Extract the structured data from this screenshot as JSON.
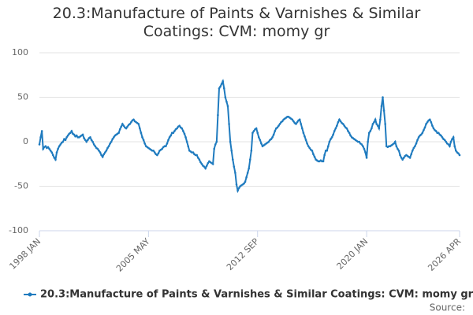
{
  "chart_data": {
    "type": "line",
    "title": "20.3:Manufacture of Paints & Varnishes & Similar Coatings: CVM: momy gr",
    "source": "Source:",
    "categories": [
      "1998 JAN",
      null,
      null,
      null,
      null,
      null,
      null,
      null,
      null,
      null,
      null,
      null,
      null,
      null,
      null,
      null,
      null,
      null,
      null,
      null,
      null,
      null,
      null,
      null,
      null,
      null,
      null,
      null,
      null,
      null,
      null,
      null,
      null,
      null,
      null,
      null,
      null,
      null,
      null,
      null,
      null,
      null,
      null,
      null,
      null,
      null,
      null,
      null,
      null,
      null,
      null,
      null,
      null,
      null,
      null,
      null,
      null,
      null,
      null,
      null,
      null,
      null,
      null,
      null,
      null,
      null,
      null,
      null,
      null,
      null,
      null,
      null,
      null,
      null,
      null,
      null,
      null,
      null,
      null,
      null,
      null,
      null,
      null,
      null,
      null,
      null,
      null,
      null,
      "2005 MAY",
      null,
      null,
      null,
      null,
      null,
      null,
      null,
      null,
      null,
      null,
      null,
      null,
      null,
      null,
      null,
      null,
      null,
      null,
      null,
      null,
      null,
      null,
      null,
      null,
      null,
      null,
      null,
      null,
      null,
      null,
      null,
      null,
      null,
      null,
      null,
      null,
      null,
      null,
      null,
      null,
      null,
      null,
      null,
      null,
      null,
      null,
      null,
      null,
      null,
      null,
      null,
      null,
      null,
      null,
      null,
      null,
      null,
      null,
      null,
      null,
      null,
      null,
      null,
      null,
      null,
      null,
      null,
      null,
      null,
      null,
      null,
      null,
      null,
      null,
      null,
      null,
      null,
      null,
      null,
      null,
      null,
      null,
      null,
      null,
      null,
      null,
      null,
      "2012 SEP",
      null,
      null,
      null,
      null,
      null,
      null,
      null,
      null,
      null,
      null,
      null,
      null,
      null,
      null,
      null,
      null,
      null,
      null,
      null,
      null,
      null,
      null,
      null,
      null,
      null,
      null,
      null,
      null,
      null,
      null,
      null,
      null,
      null,
      null,
      null,
      null,
      null,
      null,
      null,
      null,
      null,
      null,
      null,
      null,
      null,
      null,
      null,
      null,
      null,
      null,
      null,
      null,
      null,
      null,
      null,
      null,
      null,
      null,
      null,
      null,
      null,
      null,
      null,
      null,
      null,
      null,
      null,
      null,
      null,
      null,
      null,
      null,
      null,
      null,
      null,
      null,
      null,
      null,
      null,
      null,
      null,
      null,
      null,
      null,
      null,
      null,
      null,
      "2020 JAN",
      null,
      null,
      null,
      null,
      null,
      null,
      null,
      null,
      null,
      null,
      null,
      null,
      null,
      null,
      null,
      null,
      null,
      null,
      null,
      null,
      null,
      null,
      null,
      null,
      null,
      null,
      null,
      null,
      null,
      null,
      null,
      null,
      null,
      null,
      null,
      null,
      null,
      null,
      null,
      null,
      null,
      null,
      null,
      null,
      null,
      null,
      null,
      null,
      null,
      null,
      null,
      null,
      null,
      null,
      null,
      null,
      null,
      null,
      null,
      null,
      null,
      null,
      null,
      null,
      null,
      null,
      null,
      null,
      null,
      null,
      null,
      null,
      null,
      null,
      "2026 APR"
    ],
    "series": [
      {
        "name": "20.3:Manufacture of Paints & Varnishes & Similar Coatings: CVM: momy gr",
        "color": "#1f7bbf",
        "values": [
          -3,
          5,
          12,
          -8,
          -6,
          -5,
          -7,
          -6,
          -8,
          -10,
          -12,
          -15,
          -18,
          -20,
          -12,
          -8,
          -5,
          -3,
          -1,
          0,
          3,
          2,
          5,
          7,
          9,
          10,
          12,
          9,
          8,
          6,
          7,
          5,
          5,
          6,
          7,
          8,
          4,
          2,
          0,
          2,
          4,
          5,
          2,
          0,
          -3,
          -5,
          -7,
          -8,
          -10,
          -12,
          -15,
          -17,
          -14,
          -12,
          -10,
          -7,
          -5,
          -2,
          0,
          3,
          5,
          7,
          8,
          9,
          10,
          14,
          17,
          20,
          18,
          16,
          15,
          17,
          19,
          20,
          22,
          24,
          25,
          23,
          22,
          21,
          20,
          15,
          10,
          5,
          2,
          -2,
          -5,
          -6,
          -7,
          -8,
          -9,
          -10,
          -10,
          -12,
          -14,
          -15,
          -13,
          -10,
          -9,
          -8,
          -6,
          -5,
          -5,
          -2,
          2,
          5,
          7,
          10,
          10,
          12,
          14,
          15,
          17,
          18,
          16,
          15,
          12,
          9,
          5,
          0,
          -5,
          -10,
          -11,
          -12,
          -12,
          -14,
          -15,
          -15,
          -18,
          -20,
          -23,
          -25,
          -27,
          -28,
          -30,
          -27,
          -24,
          -22,
          -23,
          -24,
          -25,
          -8,
          -3,
          0,
          30,
          60,
          62,
          65,
          68,
          60,
          50,
          45,
          40,
          20,
          0,
          -10,
          -20,
          -28,
          -35,
          -48,
          -55,
          -52,
          -50,
          -49,
          -48,
          -47,
          -45,
          -40,
          -35,
          -30,
          -20,
          -10,
          10,
          12,
          14,
          15,
          10,
          5,
          2,
          -2,
          -5,
          -4,
          -3,
          -2,
          -1,
          0,
          2,
          3,
          5,
          8,
          12,
          15,
          16,
          18,
          20,
          22,
          23,
          25,
          26,
          27,
          28,
          28,
          27,
          26,
          25,
          23,
          21,
          20,
          22,
          24,
          25,
          20,
          15,
          10,
          6,
          2,
          -2,
          -5,
          -7,
          -9,
          -10,
          -14,
          -17,
          -20,
          -21,
          -22,
          -22,
          -21,
          -22,
          -22,
          -15,
          -10,
          -10,
          -5,
          0,
          3,
          5,
          8,
          12,
          15,
          18,
          22,
          25,
          23,
          21,
          20,
          18,
          16,
          15,
          12,
          10,
          7,
          5,
          4,
          3,
          2,
          1,
          0,
          0,
          -2,
          -3,
          -5,
          -8,
          -12,
          -18,
          0,
          10,
          12,
          15,
          20,
          22,
          25,
          20,
          18,
          15,
          25,
          40,
          50,
          35,
          20,
          -5,
          -6,
          -5,
          -5,
          -4,
          -3,
          -2,
          0,
          -5,
          -8,
          -10,
          -15,
          -18,
          -20,
          -18,
          -16,
          -15,
          -16,
          -17,
          -18,
          -14,
          -10,
          -7,
          -5,
          -2,
          2,
          5,
          7,
          8,
          10,
          13,
          16,
          20,
          22,
          24,
          25,
          22,
          18,
          15,
          13,
          12,
          10,
          10,
          8,
          7,
          5,
          3,
          2,
          0,
          -2,
          -3,
          -5,
          0,
          3,
          5,
          -5,
          -10,
          -12,
          -13,
          -15
        ]
      }
    ],
    "ylim": [
      -100,
      100
    ],
    "yticks": [
      -100,
      -50,
      0,
      50,
      100
    ],
    "grid": true
  }
}
